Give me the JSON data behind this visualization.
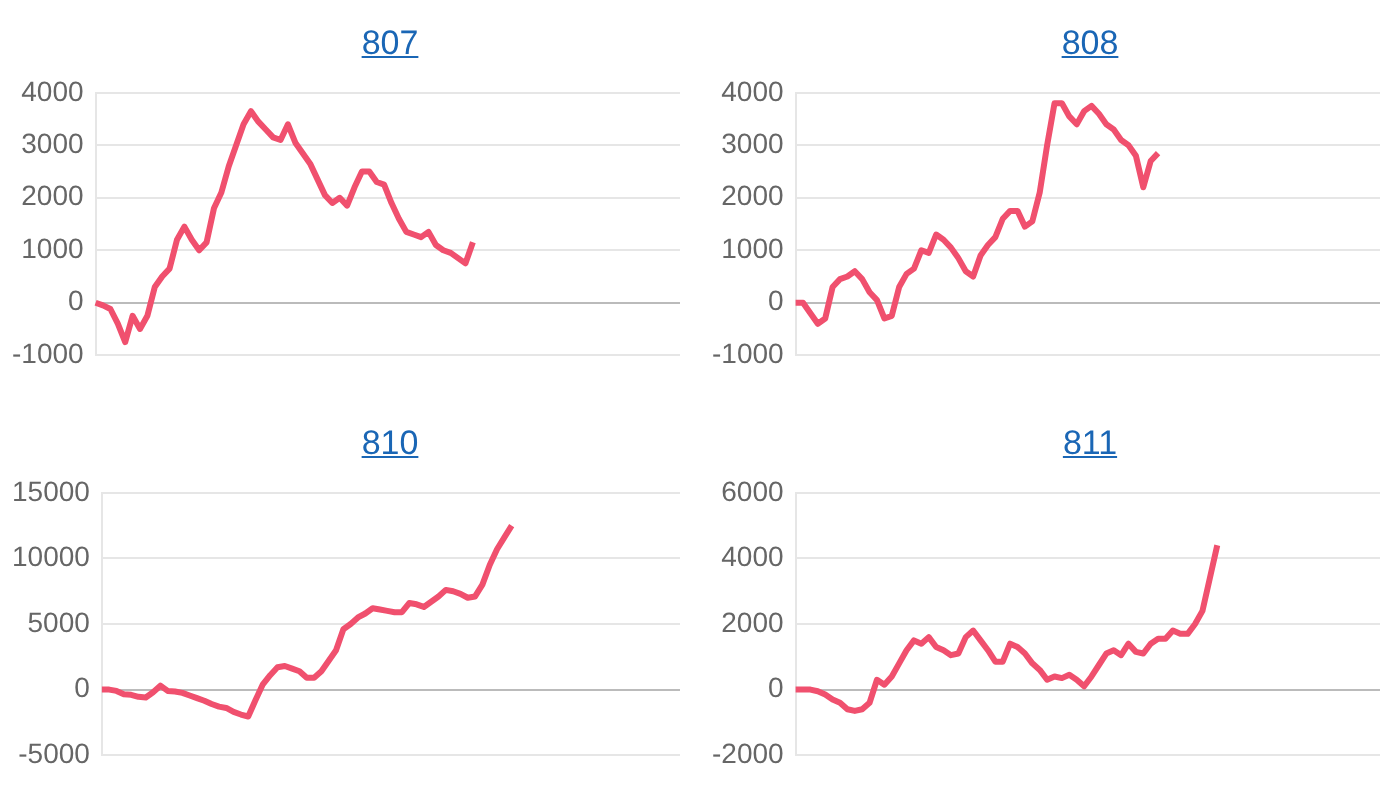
{
  "chart_data": [
    {
      "type": "line",
      "title": "807",
      "categories": [
        null,
        null,
        null,
        null,
        null,
        null,
        null,
        null,
        null,
        null,
        null,
        null,
        null,
        null,
        null,
        null,
        null,
        null,
        null,
        null,
        null,
        null,
        null,
        null,
        null,
        null,
        null,
        null,
        null,
        null,
        null,
        null,
        null,
        null,
        null,
        null,
        null,
        null,
        null,
        null,
        null,
        null,
        null,
        null,
        null,
        null,
        null,
        null,
        null,
        null,
        null,
        null,
        null,
        null,
        null,
        null,
        null,
        null,
        null,
        null,
        null,
        null,
        null,
        null,
        null,
        null,
        null,
        null,
        null,
        null,
        null,
        null,
        null,
        null,
        null,
        null,
        null,
        null,
        null,
        null
      ],
      "series": [
        {
          "color": "#f0506e",
          "values": [
            0,
            -50,
            -120,
            -400,
            -750,
            -250,
            -500,
            -250,
            300,
            500,
            650,
            1200,
            1450,
            1200,
            1000,
            1150,
            1800,
            2100,
            2600,
            3000,
            3400,
            3650,
            3450,
            3300,
            3150,
            3100,
            3400,
            3050,
            2850,
            2650,
            2350,
            2050,
            1900,
            2000,
            1850,
            2200,
            2500,
            2500,
            2300,
            2250,
            1900,
            1600,
            1350,
            1300,
            1250,
            1350,
            1100,
            1000,
            950,
            850,
            750,
            1150,
            null,
            null,
            null,
            null,
            null,
            null,
            null,
            null,
            null,
            null,
            null,
            null,
            null,
            null,
            null,
            null,
            null,
            null,
            null,
            null,
            null,
            null,
            null,
            null,
            null,
            null,
            null,
            null
          ]
        }
      ],
      "ylim": [
        -1000,
        4000
      ],
      "yticks": [
        -1000,
        0,
        1000,
        2000,
        3000,
        4000
      ],
      "grid": "y",
      "tick_labels": "y"
    },
    {
      "type": "line",
      "title": "808",
      "categories": [
        null,
        null,
        null,
        null,
        null,
        null,
        null,
        null,
        null,
        null,
        null,
        null,
        null,
        null,
        null,
        null,
        null,
        null,
        null,
        null,
        null,
        null,
        null,
        null,
        null,
        null,
        null,
        null,
        null,
        null,
        null,
        null,
        null,
        null,
        null,
        null,
        null,
        null,
        null,
        null,
        null,
        null,
        null,
        null,
        null,
        null,
        null,
        null,
        null,
        null,
        null,
        null,
        null,
        null,
        null,
        null,
        null,
        null,
        null,
        null,
        null,
        null,
        null,
        null,
        null,
        null,
        null,
        null,
        null,
        null,
        null,
        null,
        null,
        null,
        null,
        null,
        null,
        null,
        null,
        null
      ],
      "series": [
        {
          "color": "#f0506e",
          "values": [
            0,
            0,
            -200,
            -400,
            -300,
            300,
            450,
            500,
            600,
            450,
            200,
            50,
            -300,
            -250,
            300,
            550,
            650,
            1000,
            950,
            1300,
            1200,
            1050,
            850,
            600,
            500,
            900,
            1100,
            1250,
            1600,
            1750,
            1750,
            1450,
            1550,
            2100,
            3000,
            3800,
            3800,
            3550,
            3400,
            3650,
            3750,
            3600,
            3400,
            3300,
            3100,
            3000,
            2800,
            2200,
            2700,
            2850,
            null,
            null,
            null,
            null,
            null,
            null,
            null,
            null,
            null,
            null,
            null,
            null,
            null,
            null,
            null,
            null,
            null,
            null,
            null,
            null,
            null,
            null,
            null,
            null,
            null,
            null,
            null,
            null,
            null,
            null
          ]
        }
      ],
      "ylim": [
        -1000,
        4000
      ],
      "yticks": [
        -1000,
        0,
        1000,
        2000,
        3000,
        4000
      ],
      "grid": "y",
      "tick_labels": "y"
    },
    {
      "type": "line",
      "title": "810",
      "categories": [
        null,
        null,
        null,
        null,
        null,
        null,
        null,
        null,
        null,
        null,
        null,
        null,
        null,
        null,
        null,
        null,
        null,
        null,
        null,
        null,
        null,
        null,
        null,
        null,
        null,
        null,
        null,
        null,
        null,
        null,
        null,
        null,
        null,
        null,
        null,
        null,
        null,
        null,
        null,
        null,
        null,
        null,
        null,
        null,
        null,
        null,
        null,
        null,
        null,
        null,
        null,
        null,
        null,
        null,
        null,
        null,
        null,
        null,
        null,
        null,
        null,
        null,
        null,
        null,
        null,
        null,
        null,
        null,
        null,
        null,
        null,
        null,
        null,
        null,
        null,
        null,
        null,
        null,
        null,
        null
      ],
      "series": [
        {
          "color": "#f0506e",
          "values": [
            0,
            0,
            -100,
            -350,
            -400,
            -550,
            -600,
            -200,
            300,
            -100,
            -150,
            -250,
            -450,
            -650,
            -850,
            -1100,
            -1300,
            -1400,
            -1700,
            -1900,
            -2050,
            -800,
            400,
            1100,
            1700,
            1800,
            1600,
            1400,
            900,
            900,
            1400,
            2200,
            3000,
            4600,
            5000,
            5500,
            5800,
            6200,
            6100,
            6000,
            5900,
            5900,
            6600,
            6500,
            6300,
            6700,
            7100,
            7600,
            7500,
            7300,
            7000,
            7100,
            8000,
            9500,
            10700,
            11600,
            12500,
            null,
            null,
            null,
            null,
            null,
            null,
            null,
            null,
            null,
            null,
            null,
            null,
            null,
            null,
            null,
            null,
            null,
            null,
            null,
            null,
            null,
            null,
            null
          ]
        }
      ],
      "ylim": [
        -5000,
        15000
      ],
      "yticks": [
        -5000,
        0,
        5000,
        10000,
        15000
      ],
      "grid": "y",
      "tick_labels": "y"
    },
    {
      "type": "line",
      "title": "811",
      "categories": [
        null,
        null,
        null,
        null,
        null,
        null,
        null,
        null,
        null,
        null,
        null,
        null,
        null,
        null,
        null,
        null,
        null,
        null,
        null,
        null,
        null,
        null,
        null,
        null,
        null,
        null,
        null,
        null,
        null,
        null,
        null,
        null,
        null,
        null,
        null,
        null,
        null,
        null,
        null,
        null,
        null,
        null,
        null,
        null,
        null,
        null,
        null,
        null,
        null,
        null,
        null,
        null,
        null,
        null,
        null,
        null,
        null,
        null,
        null,
        null,
        null,
        null,
        null,
        null,
        null,
        null,
        null,
        null,
        null,
        null,
        null,
        null,
        null,
        null,
        null,
        null,
        null,
        null,
        null,
        null
      ],
      "series": [
        {
          "color": "#f0506e",
          "values": [
            0,
            0,
            0,
            -50,
            -150,
            -300,
            -400,
            -600,
            -650,
            -600,
            -400,
            300,
            150,
            400,
            800,
            1200,
            1500,
            1400,
            1600,
            1300,
            1200,
            1050,
            1100,
            1600,
            1800,
            1500,
            1200,
            850,
            850,
            1400,
            1300,
            1100,
            800,
            600,
            300,
            400,
            350,
            450,
            300,
            100,
            400,
            750,
            1100,
            1200,
            1050,
            1400,
            1150,
            1100,
            1400,
            1550,
            1550,
            1800,
            1700,
            1700,
            2000,
            2400,
            3400,
            4400,
            null,
            null,
            null,
            null,
            null,
            null,
            null,
            null,
            null,
            null,
            null,
            null,
            null,
            null,
            null,
            null,
            null,
            null,
            null,
            null,
            null,
            null
          ]
        }
      ],
      "ylim": [
        -2000,
        6000
      ],
      "yticks": [
        -2000,
        0,
        2000,
        4000,
        6000
      ],
      "grid": "y",
      "tick_labels": "y"
    }
  ]
}
